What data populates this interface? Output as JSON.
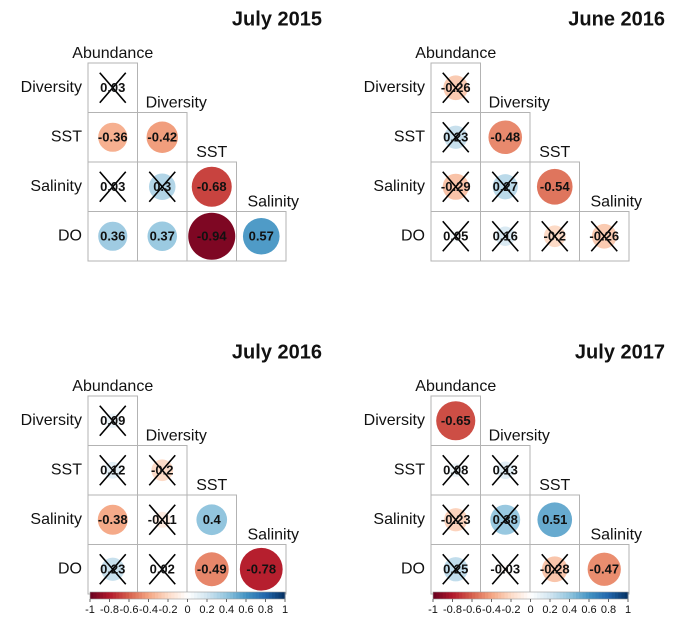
{
  "chart_data": [
    {
      "type": "corrplot",
      "title": "July 2015",
      "rows": [
        "Diversity",
        "SST",
        "Salinity",
        "DO"
      ],
      "columns": [
        "Abundance",
        "Diversity",
        "SST",
        "Salinity"
      ],
      "values": [
        [
          0.03
        ],
        [
          -0.36,
          -0.42
        ],
        [
          0.03,
          0.3,
          -0.68
        ],
        [
          0.36,
          0.37,
          -0.94,
          0.57
        ]
      ],
      "crossed": [
        [
          true
        ],
        [
          false,
          false
        ],
        [
          true,
          true,
          false
        ],
        [
          false,
          false,
          false,
          false
        ]
      ],
      "colorlim": [
        -1,
        1
      ],
      "colormap": [
        "#67001F",
        "#B2182B",
        "#D6604D",
        "#F4A582",
        "#FDDBC7",
        "#FFFFFF",
        "#D1E5F0",
        "#92C5DE",
        "#4393C3",
        "#2166AC",
        "#053061"
      ]
    },
    {
      "type": "corrplot",
      "title": "June 2016",
      "rows": [
        "Diversity",
        "SST",
        "Salinity",
        "DO"
      ],
      "columns": [
        "Abundance",
        "Diversity",
        "SST",
        "Salinity"
      ],
      "values": [
        [
          -0.26
        ],
        [
          0.23,
          -0.48
        ],
        [
          -0.29,
          0.27,
          -0.54
        ],
        [
          0.05,
          0.16,
          -0.2,
          -0.26
        ]
      ],
      "crossed": [
        [
          true
        ],
        [
          true,
          false
        ],
        [
          true,
          true,
          false
        ],
        [
          true,
          true,
          true,
          true
        ]
      ],
      "colorlim": [
        -1,
        1
      ],
      "colormap": [
        "#67001F",
        "#B2182B",
        "#D6604D",
        "#F4A582",
        "#FDDBC7",
        "#FFFFFF",
        "#D1E5F0",
        "#92C5DE",
        "#4393C3",
        "#2166AC",
        "#053061"
      ]
    },
    {
      "type": "corrplot",
      "title": "July 2016",
      "rows": [
        "Diversity",
        "SST",
        "Salinity",
        "DO"
      ],
      "columns": [
        "Abundance",
        "Diversity",
        "SST",
        "Salinity"
      ],
      "values": [
        [
          0.09
        ],
        [
          0.12,
          -0.2
        ],
        [
          -0.38,
          -0.11,
          0.4
        ],
        [
          0.23,
          0.02,
          -0.49,
          -0.78
        ]
      ],
      "crossed": [
        [
          true
        ],
        [
          true,
          true
        ],
        [
          false,
          true,
          false
        ],
        [
          true,
          true,
          false,
          false
        ]
      ],
      "colorlim": [
        -1,
        1
      ],
      "colormap": [
        "#67001F",
        "#B2182B",
        "#D6604D",
        "#F4A582",
        "#FDDBC7",
        "#FFFFFF",
        "#D1E5F0",
        "#92C5DE",
        "#4393C3",
        "#2166AC",
        "#053061"
      ],
      "colorbar_ticks": [
        -1,
        -0.8,
        -0.6,
        -0.4,
        -0.2,
        0,
        0.2,
        0.4,
        0.6,
        0.8,
        1
      ]
    },
    {
      "type": "corrplot",
      "title": "July 2017",
      "rows": [
        "Diversity",
        "SST",
        "Salinity",
        "DO"
      ],
      "columns": [
        "Abundance",
        "Diversity",
        "SST",
        "Salinity"
      ],
      "values": [
        [
          -0.65
        ],
        [
          0.08,
          0.13
        ],
        [
          -0.23,
          0.38,
          0.51
        ],
        [
          0.25,
          -0.03,
          -0.28,
          -0.47
        ]
      ],
      "crossed": [
        [
          false
        ],
        [
          true,
          true
        ],
        [
          true,
          true,
          false
        ],
        [
          true,
          true,
          true,
          false
        ]
      ],
      "colorlim": [
        -1,
        1
      ],
      "colormap": [
        "#67001F",
        "#B2182B",
        "#D6604D",
        "#F4A582",
        "#FDDBC7",
        "#FFFFFF",
        "#D1E5F0",
        "#92C5DE",
        "#4393C3",
        "#2166AC",
        "#053061"
      ],
      "colorbar_ticks": [
        -1,
        -0.8,
        -0.6,
        -0.4,
        -0.2,
        0,
        0.2,
        0.4,
        0.6,
        0.8,
        1
      ]
    }
  ]
}
